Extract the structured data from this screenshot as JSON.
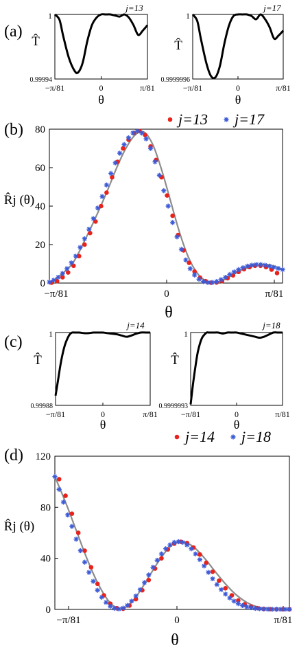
{
  "panels": {
    "a": {
      "label": "(a)"
    },
    "b": {
      "label": "(b)"
    },
    "c": {
      "label": "(c)"
    },
    "d": {
      "label": "(d)"
    }
  },
  "colors": {
    "red": "#e8231c",
    "blue": "#3c5bd8",
    "curve": "#8c8c8c",
    "line": "#000000"
  },
  "chart_data": [
    {
      "id": "a1",
      "type": "line",
      "title": "j=13",
      "xlabel": "θ",
      "ylabel": "T̂",
      "xticks": [
        "−π/81",
        "0",
        "π/81"
      ],
      "yticks": [
        "0.99994",
        "1"
      ],
      "xlim": [
        -1,
        1
      ],
      "ylim": [
        0.99994,
        1.0
      ],
      "series": [
        {
          "x": [
            -1,
            -0.9,
            -0.82,
            -0.7,
            -0.58,
            -0.5,
            -0.4,
            -0.3,
            -0.2,
            -0.1,
            0,
            0.1,
            0.2,
            0.3,
            0.4,
            0.5,
            0.6,
            0.7,
            0.8,
            0.9,
            1.0
          ],
          "y": [
            1.0,
            0.999995,
            0.99998,
            0.99996,
            0.999948,
            0.999946,
            0.999955,
            0.999975,
            0.99999,
            0.999997,
            1.0,
            1.0,
            1.0,
            0.999999,
            0.999998,
            1.0,
            0.999997,
            0.99999,
            0.999981,
            0.999985,
            0.99999
          ]
        }
      ]
    },
    {
      "id": "a2",
      "type": "line",
      "title": "j=17",
      "xlabel": "θ",
      "ylabel": "T̂",
      "xticks": [
        "−π/81",
        "0",
        "π/81"
      ],
      "yticks": [
        "0.9999996",
        "1"
      ],
      "xlim": [
        -1,
        1
      ],
      "ylim": [
        0.9999996,
        1.0
      ],
      "series": [
        {
          "x": [
            -1,
            -0.9,
            -0.82,
            -0.7,
            -0.6,
            -0.5,
            -0.4,
            -0.3,
            -0.2,
            -0.1,
            0,
            0.1,
            0.2,
            0.3,
            0.4,
            0.5,
            0.6,
            0.7,
            0.8,
            0.9,
            1.0
          ],
          "y": [
            1.0,
            0.99999996,
            0.99999985,
            0.9999997,
            0.99999962,
            0.99999961,
            0.99999968,
            0.99999982,
            0.99999993,
            0.99999999,
            1.0,
            1.0,
            1.0,
            0.99999999,
            0.99999997,
            1.0,
            0.99999997,
            0.99999992,
            0.99999985,
            0.99999987,
            0.9999999
          ]
        }
      ]
    },
    {
      "id": "b",
      "type": "scatter",
      "xlabel": "θ",
      "ylabel": "R̂j (θ)",
      "xticks": [
        "−π/81",
        "0",
        "π/81"
      ],
      "yticks": [
        "0",
        "20",
        "40",
        "60",
        "80"
      ],
      "xlim": [
        -1.12,
        1.0
      ],
      "ylim": [
        0,
        80
      ],
      "legend": "top-right",
      "series": [
        {
          "name": "j=13",
          "marker": "dot",
          "color": "red",
          "x": [
            -1.1,
            -1.05,
            -1.0,
            -0.95,
            -0.9,
            -0.85,
            -0.8,
            -0.75,
            -0.7,
            -0.65,
            -0.6,
            -0.55,
            -0.5,
            -0.45,
            -0.4,
            -0.35,
            -0.3,
            -0.25,
            -0.2,
            -0.15,
            -0.1,
            -0.05,
            0.0,
            0.05,
            0.1,
            0.15,
            0.2,
            0.25,
            0.3,
            0.35,
            0.4,
            0.45,
            0.5,
            0.55,
            0.6,
            0.65,
            0.7,
            0.75,
            0.8,
            0.85,
            0.9,
            0.95
          ],
          "y": [
            0.2,
            1.0,
            3.0,
            5.5,
            9.0,
            14.0,
            20.0,
            26.0,
            32.0,
            40.0,
            47.0,
            55.0,
            63.0,
            70.0,
            74.5,
            78.0,
            79.0,
            77.0,
            71.0,
            64.0,
            55.0,
            45.5,
            35.0,
            25.0,
            17.0,
            10.5,
            6.0,
            2.8,
            1.0,
            0.2,
            0.3,
            1.0,
            2.5,
            4.0,
            5.8,
            7.2,
            8.3,
            9.0,
            9.0,
            8.3,
            7.0,
            5.2
          ]
        },
        {
          "name": "j=17",
          "marker": "star",
          "color": "blue",
          "x": [
            -1.12,
            -1.08,
            -1.04,
            -1.0,
            -0.96,
            -0.92,
            -0.88,
            -0.84,
            -0.8,
            -0.76,
            -0.72,
            -0.68,
            -0.64,
            -0.6,
            -0.56,
            -0.52,
            -0.48,
            -0.44,
            -0.4,
            -0.36,
            -0.32,
            -0.28,
            -0.24,
            -0.2,
            -0.16,
            -0.12,
            -0.08,
            -0.04,
            0.0,
            0.04,
            0.08,
            0.12,
            0.16,
            0.2,
            0.24,
            0.28,
            0.32,
            0.36,
            0.4,
            0.44,
            0.48,
            0.52,
            0.56,
            0.6,
            0.64,
            0.68,
            0.72,
            0.76,
            0.8,
            0.84,
            0.88,
            0.92,
            0.96,
            1.0
          ],
          "y": [
            0.5,
            1.5,
            3.0,
            5.0,
            7.5,
            10.5,
            14.0,
            18.5,
            23.0,
            28.0,
            33.5,
            39.0,
            45.0,
            51.0,
            57.0,
            62.5,
            67.5,
            72.0,
            75.5,
            78.0,
            79.0,
            78.0,
            75.0,
            70.0,
            63.0,
            56.0,
            48.0,
            40.0,
            31.5,
            24.0,
            17.5,
            12.0,
            7.5,
            4.2,
            2.0,
            0.8,
            0.3,
            0.3,
            0.8,
            1.8,
            3.0,
            4.5,
            5.8,
            7.0,
            8.0,
            8.8,
            9.3,
            9.6,
            9.6,
            9.3,
            8.8,
            8.2,
            7.6,
            7.0
          ]
        }
      ],
      "curve": {
        "x": [
          -1.12,
          -1.0,
          -0.9,
          -0.8,
          -0.7,
          -0.6,
          -0.5,
          -0.42,
          -0.34,
          -0.26,
          -0.18,
          -0.1,
          -0.02,
          0.06,
          0.14,
          0.22,
          0.3,
          0.38,
          0.46,
          0.54,
          0.62,
          0.7,
          0.78,
          0.86,
          0.94,
          1.0
        ],
        "y": [
          0,
          5.0,
          11.0,
          22.0,
          34.0,
          47.0,
          61.0,
          70.5,
          77.0,
          78.5,
          72.0,
          59.0,
          43.0,
          27.0,
          14.0,
          5.5,
          1.2,
          0.2,
          1.5,
          4.0,
          6.5,
          8.3,
          9.4,
          9.6,
          8.5,
          7.0
        ]
      }
    },
    {
      "id": "c1",
      "type": "line",
      "title": "j=14",
      "xlabel": "θ",
      "ylabel": "T̂",
      "xticks": [
        "−π/81",
        "0",
        "π/81"
      ],
      "yticks": [
        "0.99988",
        "1"
      ],
      "xlim": [
        -1,
        1
      ],
      "ylim": [
        0.99988,
        1.0
      ],
      "series": [
        {
          "x": [
            -1,
            -0.95,
            -0.9,
            -0.85,
            -0.8,
            -0.75,
            -0.7,
            -0.65,
            -0.6,
            -0.5,
            -0.4,
            -0.3,
            -0.2,
            -0.1,
            0,
            0.1,
            0.2,
            0.3,
            0.4,
            0.5,
            0.6,
            0.7,
            0.8,
            0.9,
            1.0
          ],
          "y": [
            0.999896,
            0.99992,
            0.999945,
            0.999965,
            0.99998,
            0.99999,
            0.999997,
            1.0,
            1.0,
            1.0,
            0.999999,
            0.999999,
            1.0,
            1.0,
            1.0,
            0.999999,
            0.999998,
            0.999997,
            0.999995,
            0.999993,
            0.999995,
            0.999998,
            1.0,
            1.0,
            1.0
          ]
        }
      ]
    },
    {
      "id": "c2",
      "type": "line",
      "title": "j=18",
      "xlabel": "θ",
      "ylabel": "T̂",
      "xticks": [
        "−π/81",
        "0",
        "π/81"
      ],
      "yticks": [
        "0.9999993",
        "1"
      ],
      "xlim": [
        -1,
        1
      ],
      "ylim": [
        0.9999993,
        1.0
      ],
      "series": [
        {
          "x": [
            -1,
            -0.95,
            -0.9,
            -0.85,
            -0.8,
            -0.75,
            -0.7,
            -0.65,
            -0.6,
            -0.5,
            -0.4,
            -0.3,
            -0.2,
            -0.1,
            0,
            0.1,
            0.2,
            0.3,
            0.4,
            0.5,
            0.6,
            0.7,
            0.8,
            0.9,
            1.0
          ],
          "y": [
            0.99999931,
            0.9999995,
            0.99999966,
            0.9999998,
            0.99999989,
            0.99999995,
            0.99999998,
            1.0,
            1.0,
            1.0,
            1.0,
            0.99999999,
            1.0,
            1.0,
            1.0,
            0.99999999,
            0.99999998,
            0.99999997,
            0.99999996,
            0.99999995,
            0.99999996,
            0.99999998,
            1.0,
            1.0,
            1.0
          ]
        }
      ]
    },
    {
      "id": "d",
      "type": "scatter",
      "xlabel": "θ",
      "ylabel": "R̂j (θ)",
      "xticks": [
        "−π/81",
        "0",
        "π/81"
      ],
      "yticks": [
        "0",
        "40",
        "80",
        "120"
      ],
      "xlim": [
        -1.2,
        1.0
      ],
      "ylim": [
        0,
        120
      ],
      "legend": "top-right",
      "series": [
        {
          "name": "j=14",
          "marker": "dot",
          "color": "red",
          "x": [
            -1.16,
            -1.1,
            -1.04,
            -0.98,
            -0.92,
            -0.86,
            -0.8,
            -0.74,
            -0.68,
            -0.62,
            -0.56,
            -0.5,
            -0.44,
            -0.38,
            -0.32,
            -0.26,
            -0.2,
            -0.14,
            -0.08,
            -0.02,
            0.04,
            0.1,
            0.16,
            0.22,
            0.28,
            0.34,
            0.4,
            0.46,
            0.52,
            0.58,
            0.64,
            0.7,
            0.76,
            0.82,
            0.88,
            0.94,
            1.0
          ],
          "y": [
            102,
            89,
            75,
            60,
            46,
            33,
            20,
            11,
            4.5,
            1.0,
            0.5,
            3.0,
            8.0,
            15.0,
            23.0,
            32.0,
            40.0,
            47.0,
            51.5,
            53.0,
            52.0,
            48.5,
            43.0,
            36.5,
            29.5,
            22.5,
            16.5,
            11.0,
            7.0,
            4.0,
            2.2,
            1.0,
            0.4,
            0.2,
            0.1,
            0.1,
            0.1
          ]
        },
        {
          "name": "j=18",
          "marker": "star",
          "color": "blue",
          "x": [
            -1.2,
            -1.16,
            -1.12,
            -1.08,
            -1.04,
            -1.0,
            -0.96,
            -0.92,
            -0.88,
            -0.84,
            -0.8,
            -0.76,
            -0.72,
            -0.68,
            -0.64,
            -0.6,
            -0.56,
            -0.52,
            -0.48,
            -0.44,
            -0.4,
            -0.36,
            -0.32,
            -0.28,
            -0.24,
            -0.2,
            -0.16,
            -0.12,
            -0.08,
            -0.04,
            0.0,
            0.04,
            0.08,
            0.12,
            0.16,
            0.2,
            0.24,
            0.28,
            0.32,
            0.36,
            0.4,
            0.44,
            0.48,
            0.52,
            0.56,
            0.6,
            0.64,
            0.68,
            0.72,
            0.76,
            0.8,
            0.84,
            0.88,
            0.92,
            0.96,
            1.0
          ],
          "y": [
            104,
            94,
            84,
            74,
            65,
            55,
            46,
            37,
            29,
            22,
            15,
            9.5,
            5.5,
            2.5,
            0.8,
            0.3,
            1.0,
            3.2,
            6.5,
            10.5,
            15.5,
            21.0,
            27.0,
            33.0,
            38.5,
            43.5,
            47.5,
            50.5,
            52.5,
            53.0,
            52.5,
            50.5,
            47.5,
            43.5,
            39.0,
            34.0,
            29.0,
            24.0,
            19.5,
            15.5,
            12.0,
            9.0,
            6.5,
            4.5,
            3.0,
            2.0,
            1.3,
            0.8,
            0.5,
            0.3,
            0.2,
            0.1,
            0.1,
            0.1,
            0.1,
            0.1
          ]
        }
      ],
      "curve": {
        "x": [
          -1.2,
          -1.1,
          -1.0,
          -0.9,
          -0.8,
          -0.7,
          -0.62,
          -0.56,
          -0.48,
          -0.4,
          -0.3,
          -0.2,
          -0.1,
          0.0,
          0.1,
          0.2,
          0.3,
          0.4,
          0.5,
          0.6,
          0.7,
          0.8,
          0.9,
          1.0
        ],
        "y": [
          104,
          84,
          62,
          40,
          21,
          7.0,
          1.2,
          0.5,
          5.5,
          14.5,
          28.0,
          41.0,
          50.5,
          53.0,
          49.0,
          40.5,
          30.0,
          20.0,
          11.5,
          5.5,
          2.0,
          0.6,
          0.2,
          0.1
        ]
      }
    }
  ]
}
